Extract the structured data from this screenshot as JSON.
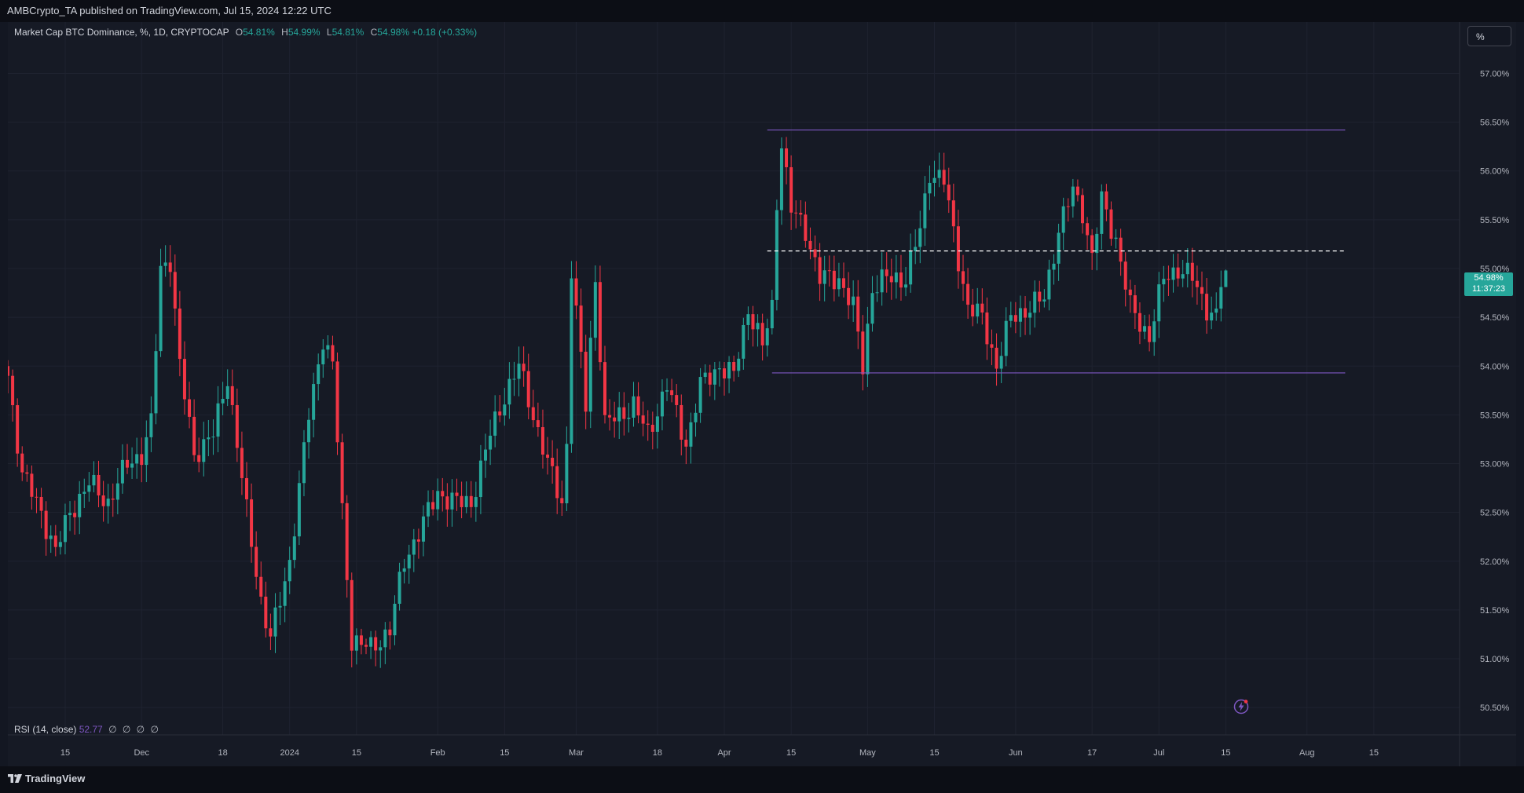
{
  "header": {
    "publish_line": "AMBCrypto_TA published on TradingView.com, Jul 15, 2024 12:22 UTC"
  },
  "legend": {
    "symbol": "Market Cap BTC Dominance, %, 1D, CRYPTOCAP",
    "o_label": "O",
    "o_value": "54.81%",
    "h_label": "H",
    "h_value": "54.99%",
    "l_label": "L",
    "l_value": "54.81%",
    "c_label": "C",
    "c_value": "54.98%",
    "change": "+0.18 (+0.33%)"
  },
  "rsi_legend": {
    "label": "RSI (14, close)",
    "value": "52.77",
    "na": [
      "∅",
      "∅",
      "∅",
      "∅"
    ]
  },
  "scale_button": {
    "label": "%"
  },
  "price_tag": {
    "price": "54.98%",
    "countdown": "11:37:23"
  },
  "footer": {
    "brand": "TradingView"
  },
  "colors": {
    "background": "#161a25",
    "bull": "#26a69a",
    "bear": "#f23645",
    "range_line": "#7e57c2",
    "mid_line": "#ffffff",
    "grid": "#1f2330",
    "axis_text": "#b2b5be"
  },
  "chart_data": {
    "type": "candlestick",
    "title": "",
    "y_unit": "%",
    "ylim": [
      50.3,
      57.35
    ],
    "grid": true,
    "y_ticks": [
      "57.00%",
      "56.50%",
      "56.00%",
      "55.50%",
      "55.00%",
      "54.50%",
      "54.00%",
      "53.50%",
      "53.00%",
      "52.50%",
      "52.00%",
      "51.50%",
      "51.00%",
      "50.50%"
    ],
    "y_tick_values": [
      57.0,
      56.5,
      56.0,
      55.5,
      55.0,
      54.5,
      54.0,
      53.5,
      53.0,
      52.5,
      52.0,
      51.5,
      51.0,
      50.5
    ],
    "x_ticks": [
      {
        "label": "15",
        "date": "2023-11-15"
      },
      {
        "label": "Dec",
        "date": "2023-12-01"
      },
      {
        "label": "18",
        "date": "2023-12-18"
      },
      {
        "label": "2024",
        "date": "2024-01-01"
      },
      {
        "label": "15",
        "date": "2024-01-15"
      },
      {
        "label": "Feb",
        "date": "2024-02-01"
      },
      {
        "label": "15",
        "date": "2024-02-15"
      },
      {
        "label": "Mar",
        "date": "2024-03-01"
      },
      {
        "label": "18",
        "date": "2024-03-18"
      },
      {
        "label": "Apr",
        "date": "2024-04-01"
      },
      {
        "label": "15",
        "date": "2024-04-15"
      },
      {
        "label": "May",
        "date": "2024-05-01"
      },
      {
        "label": "15",
        "date": "2024-05-15"
      },
      {
        "label": "Jun",
        "date": "2024-06-01"
      },
      {
        "label": "17",
        "date": "2024-06-17"
      },
      {
        "label": "Jul",
        "date": "2024-07-01"
      },
      {
        "label": "15",
        "date": "2024-07-15"
      },
      {
        "label": "Aug",
        "date": "2024-08-01"
      },
      {
        "label": "15",
        "date": "2024-08-15"
      }
    ],
    "x_range": [
      "2023-11-03",
      "2024-08-29"
    ],
    "keypoints": [
      {
        "date": "2023-11-03",
        "close": 53.9
      },
      {
        "date": "2023-11-06",
        "close": 52.9
      },
      {
        "date": "2023-11-10",
        "close": 52.5
      },
      {
        "date": "2023-11-13",
        "close": 52.1
      },
      {
        "date": "2023-11-16",
        "close": 52.5
      },
      {
        "date": "2023-11-20",
        "close": 52.8
      },
      {
        "date": "2023-11-24",
        "close": 52.6
      },
      {
        "date": "2023-11-28",
        "close": 53.0
      },
      {
        "date": "2023-12-01",
        "close": 53.1
      },
      {
        "date": "2023-12-03",
        "close": 53.4
      },
      {
        "date": "2023-12-05",
        "close": 55.0
      },
      {
        "date": "2023-12-07",
        "close": 55.1
      },
      {
        "date": "2023-12-09",
        "close": 54.0
      },
      {
        "date": "2023-12-12",
        "close": 53.1
      },
      {
        "date": "2023-12-16",
        "close": 53.3
      },
      {
        "date": "2023-12-19",
        "close": 53.9
      },
      {
        "date": "2023-12-23",
        "close": 52.5
      },
      {
        "date": "2023-12-26",
        "close": 51.6
      },
      {
        "date": "2023-12-28",
        "close": 51.2
      },
      {
        "date": "2024-01-01",
        "close": 52.0
      },
      {
        "date": "2024-01-05",
        "close": 53.5
      },
      {
        "date": "2024-01-08",
        "close": 54.3
      },
      {
        "date": "2024-01-10",
        "close": 54.0
      },
      {
        "date": "2024-01-12",
        "close": 52.5
      },
      {
        "date": "2024-01-14",
        "close": 51.2
      },
      {
        "date": "2024-01-18",
        "close": 51.1
      },
      {
        "date": "2024-01-22",
        "close": 51.3
      },
      {
        "date": "2024-01-25",
        "close": 52.0
      },
      {
        "date": "2024-01-29",
        "close": 52.4
      },
      {
        "date": "2024-02-01",
        "close": 52.7
      },
      {
        "date": "2024-02-05",
        "close": 52.6
      },
      {
        "date": "2024-02-08",
        "close": 52.6
      },
      {
        "date": "2024-02-12",
        "close": 53.3
      },
      {
        "date": "2024-02-15",
        "close": 53.7
      },
      {
        "date": "2024-02-18",
        "close": 54.0
      },
      {
        "date": "2024-02-21",
        "close": 53.5
      },
      {
        "date": "2024-02-24",
        "close": 53.0
      },
      {
        "date": "2024-02-27",
        "close": 52.6
      },
      {
        "date": "2024-02-28",
        "close": 53.2
      },
      {
        "date": "2024-02-29",
        "close": 55.0
      },
      {
        "date": "2024-03-03",
        "close": 53.6
      },
      {
        "date": "2024-03-05",
        "close": 54.9
      },
      {
        "date": "2024-03-07",
        "close": 53.4
      },
      {
        "date": "2024-03-10",
        "close": 53.5
      },
      {
        "date": "2024-03-13",
        "close": 53.6
      },
      {
        "date": "2024-03-16",
        "close": 53.3
      },
      {
        "date": "2024-03-20",
        "close": 53.8
      },
      {
        "date": "2024-03-24",
        "close": 53.2
      },
      {
        "date": "2024-03-27",
        "close": 53.8
      },
      {
        "date": "2024-03-31",
        "close": 54.0
      },
      {
        "date": "2024-04-03",
        "close": 53.9
      },
      {
        "date": "2024-04-06",
        "close": 54.6
      },
      {
        "date": "2024-04-09",
        "close": 54.2
      },
      {
        "date": "2024-04-11",
        "close": 54.6
      },
      {
        "date": "2024-04-12",
        "close": 55.7
      },
      {
        "date": "2024-04-13",
        "close": 56.3
      },
      {
        "date": "2024-04-15",
        "close": 55.6
      },
      {
        "date": "2024-04-18",
        "close": 55.4
      },
      {
        "date": "2024-04-21",
        "close": 54.9
      },
      {
        "date": "2024-04-25",
        "close": 54.9
      },
      {
        "date": "2024-04-28",
        "close": 54.6
      },
      {
        "date": "2024-04-30",
        "close": 54.0
      },
      {
        "date": "2024-05-02",
        "close": 54.8
      },
      {
        "date": "2024-05-05",
        "close": 54.9
      },
      {
        "date": "2024-05-09",
        "close": 54.9
      },
      {
        "date": "2024-05-12",
        "close": 55.4
      },
      {
        "date": "2024-05-14",
        "close": 56.0
      },
      {
        "date": "2024-05-17",
        "close": 55.9
      },
      {
        "date": "2024-05-20",
        "close": 55.1
      },
      {
        "date": "2024-05-22",
        "close": 54.6
      },
      {
        "date": "2024-05-25",
        "close": 54.5
      },
      {
        "date": "2024-05-28",
        "close": 54.0
      },
      {
        "date": "2024-05-31",
        "close": 54.5
      },
      {
        "date": "2024-06-04",
        "close": 54.6
      },
      {
        "date": "2024-06-07",
        "close": 54.7
      },
      {
        "date": "2024-06-10",
        "close": 55.4
      },
      {
        "date": "2024-06-13",
        "close": 55.8
      },
      {
        "date": "2024-06-15",
        "close": 55.6
      },
      {
        "date": "2024-06-17",
        "close": 55.1
      },
      {
        "date": "2024-06-19",
        "close": 55.7
      },
      {
        "date": "2024-06-22",
        "close": 55.3
      },
      {
        "date": "2024-06-25",
        "close": 54.6
      },
      {
        "date": "2024-06-29",
        "close": 54.3
      },
      {
        "date": "2024-07-02",
        "close": 54.9
      },
      {
        "date": "2024-07-05",
        "close": 55.0
      },
      {
        "date": "2024-07-08",
        "close": 54.9
      },
      {
        "date": "2024-07-11",
        "close": 54.6
      },
      {
        "date": "2024-07-13",
        "close": 54.5
      },
      {
        "date": "2024-07-14",
        "close": 54.81
      },
      {
        "date": "2024-07-15",
        "close": 54.98
      }
    ],
    "last_candle": {
      "date": "2024-07-15",
      "open": 54.81,
      "high": 54.99,
      "low": 54.81,
      "close": 54.98
    },
    "annotations": [
      {
        "type": "horizontal_segment",
        "name": "range-high",
        "value": 56.42,
        "from": "2024-04-10",
        "to": "2024-08-09",
        "style": "solid"
      },
      {
        "type": "horizontal_segment",
        "name": "range-low",
        "value": 53.93,
        "from": "2024-04-11",
        "to": "2024-08-09",
        "style": "solid"
      },
      {
        "type": "horizontal_segment",
        "name": "range-mid",
        "value": 55.18,
        "from": "2024-04-10",
        "to": "2024-08-09",
        "style": "dashed"
      }
    ]
  }
}
